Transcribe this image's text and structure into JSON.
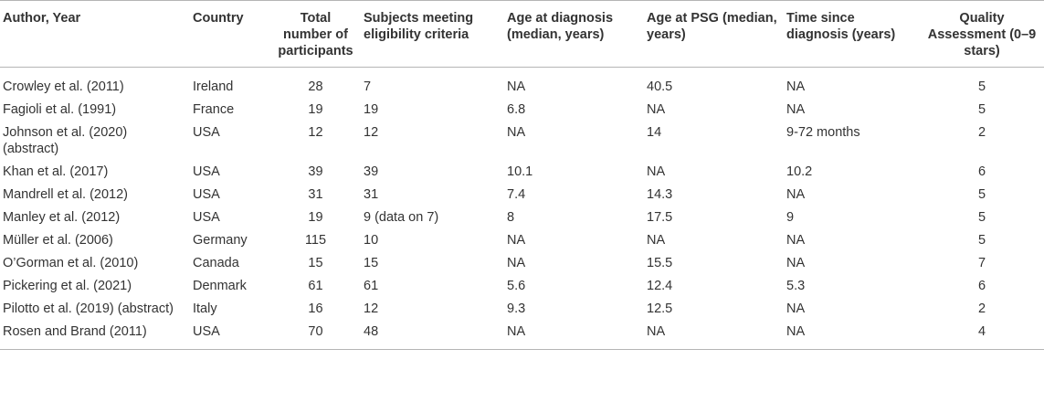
{
  "table": {
    "headers": [
      "Author, Year",
      "Country",
      "Total number of participants",
      "Subjects meeting eligibility criteria",
      "Age at diagnosis (median, years)",
      "Age at PSG (median, years)",
      "Time since diagnosis (years)",
      "Quality Assessment (0–9 stars)"
    ],
    "rows": [
      [
        "Crowley et al. (2011)",
        "Ireland",
        "28",
        "7",
        "NA",
        "40.5",
        "NA",
        "5"
      ],
      [
        "Fagioli et al. (1991)",
        "France",
        "19",
        "19",
        "6.8",
        "NA",
        "NA",
        "5"
      ],
      [
        "Johnson et al. (2020) (abstract)",
        "USA",
        "12",
        "12",
        "NA",
        "14",
        "9-72 months",
        "2"
      ],
      [
        "Khan et al. (2017)",
        "USA",
        "39",
        "39",
        "10.1",
        "NA",
        "10.2",
        "6"
      ],
      [
        "Mandrell et al. (2012)",
        "USA",
        "31",
        "31",
        "7.4",
        "14.3",
        "NA",
        "5"
      ],
      [
        "Manley et al. (2012)",
        "USA",
        "19",
        "9 (data on 7)",
        "8",
        "17.5",
        "9",
        "5"
      ],
      [
        "Müller et al. (2006)",
        "Germany",
        "115",
        "10",
        "NA",
        "NA",
        "NA",
        "5"
      ],
      [
        "O’Gorman et al. (2010)",
        "Canada",
        "15",
        "15",
        "NA",
        "15.5",
        "NA",
        "7"
      ],
      [
        "Pickering et al. (2021)",
        "Denmark",
        "61",
        "61",
        "5.6",
        "12.4",
        "5.3",
        "6"
      ],
      [
        "Pilotto et al. (2019) (abstract)",
        "Italy",
        "16",
        "12",
        "9.3",
        "12.5",
        "NA",
        "2"
      ],
      [
        "Rosen and Brand (2011)",
        "USA",
        "70",
        "48",
        "NA",
        "NA",
        "NA",
        "4"
      ]
    ]
  }
}
